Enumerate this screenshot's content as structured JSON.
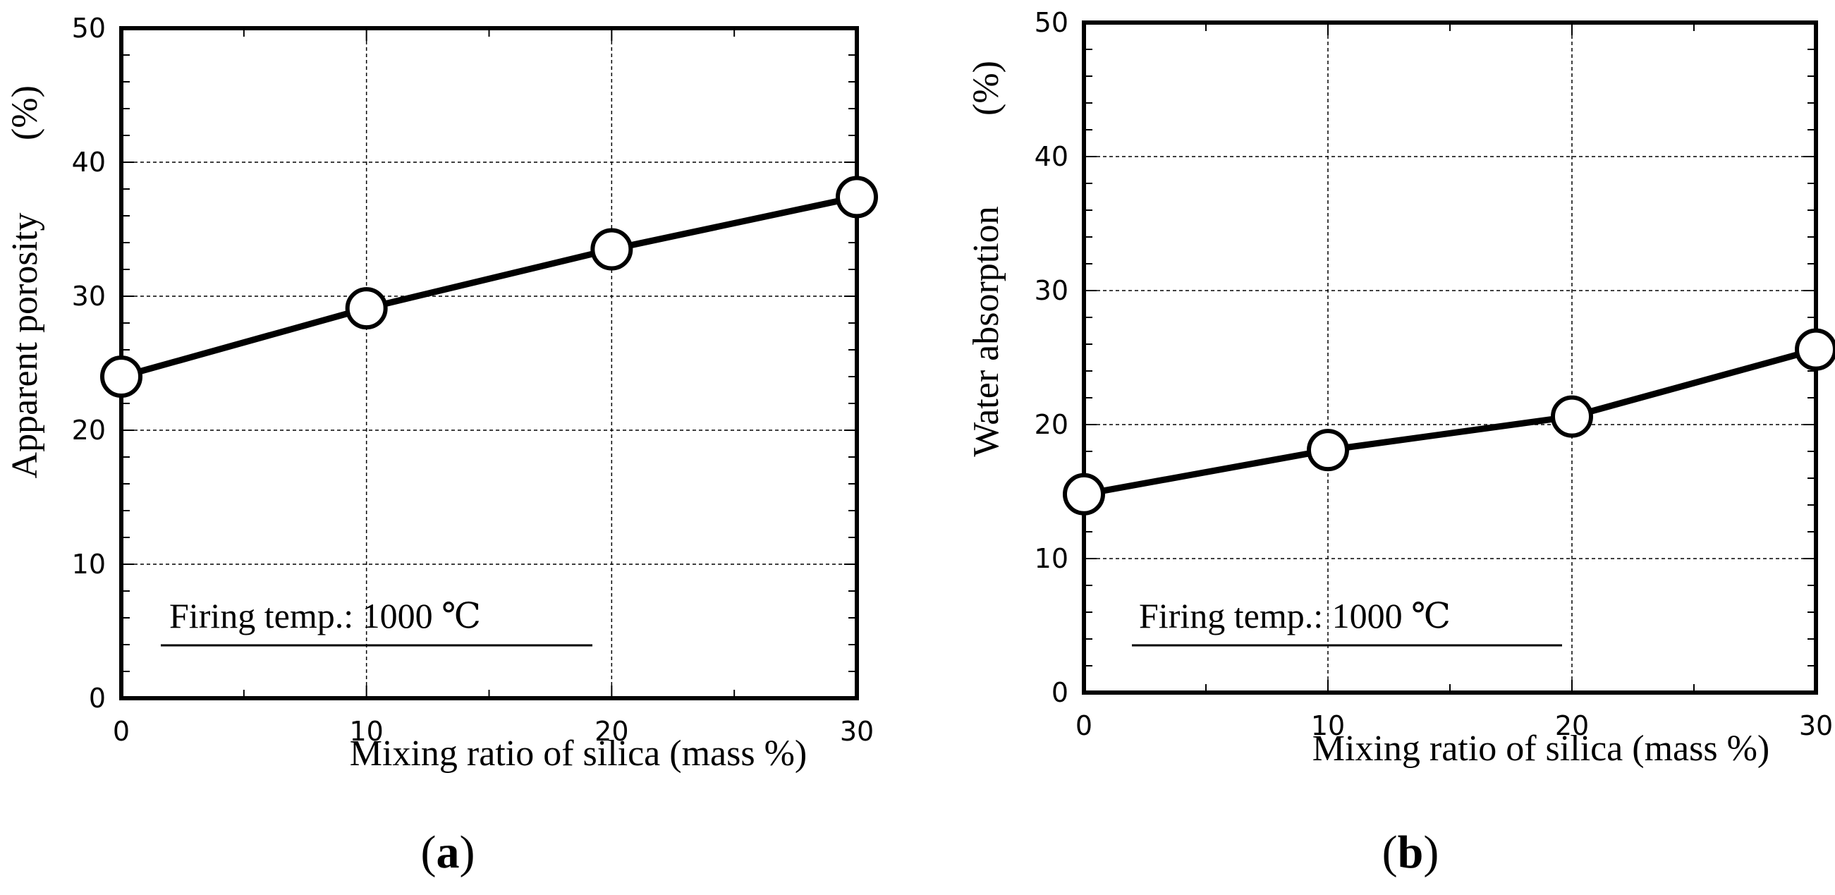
{
  "chart_data": [
    {
      "type": "line",
      "panel_label": "a",
      "title": "",
      "xlabel": "Mixing ratio of silica (mass %)",
      "ylabel": "Apparent porosity",
      "ylabel_unit": "(%)",
      "xlim": [
        0,
        30
      ],
      "ylim": [
        0,
        50
      ],
      "x_ticks": [
        "0",
        "10",
        "20",
        "30"
      ],
      "y_ticks": [
        "0",
        "10",
        "20",
        "30",
        "40",
        "50"
      ],
      "grid": true,
      "annotation": "Firing temp.: 1000 ℃",
      "series": [
        {
          "name": "Apparent porosity",
          "x": [
            0,
            10,
            20,
            30
          ],
          "values": [
            24.0,
            29.1,
            33.5,
            37.4
          ]
        }
      ]
    },
    {
      "type": "line",
      "panel_label": "b",
      "title": "",
      "xlabel": "Mixing ratio of silica (mass %)",
      "ylabel": "Water absorption",
      "ylabel_unit": "(%)",
      "xlim": [
        0,
        30
      ],
      "ylim": [
        0,
        50
      ],
      "x_ticks": [
        "0",
        "10",
        "20",
        "30"
      ],
      "y_ticks": [
        "0",
        "10",
        "20",
        "30",
        "40",
        "50"
      ],
      "grid": true,
      "annotation": "Firing temp.: 1000 ℃",
      "series": [
        {
          "name": "Water absorption",
          "x": [
            0,
            10,
            20,
            30
          ],
          "values": [
            14.8,
            18.1,
            20.6,
            25.6
          ]
        }
      ]
    }
  ],
  "colors": {
    "line": "#000000",
    "marker_fill": "#ffffff",
    "grid": "#000000"
  }
}
